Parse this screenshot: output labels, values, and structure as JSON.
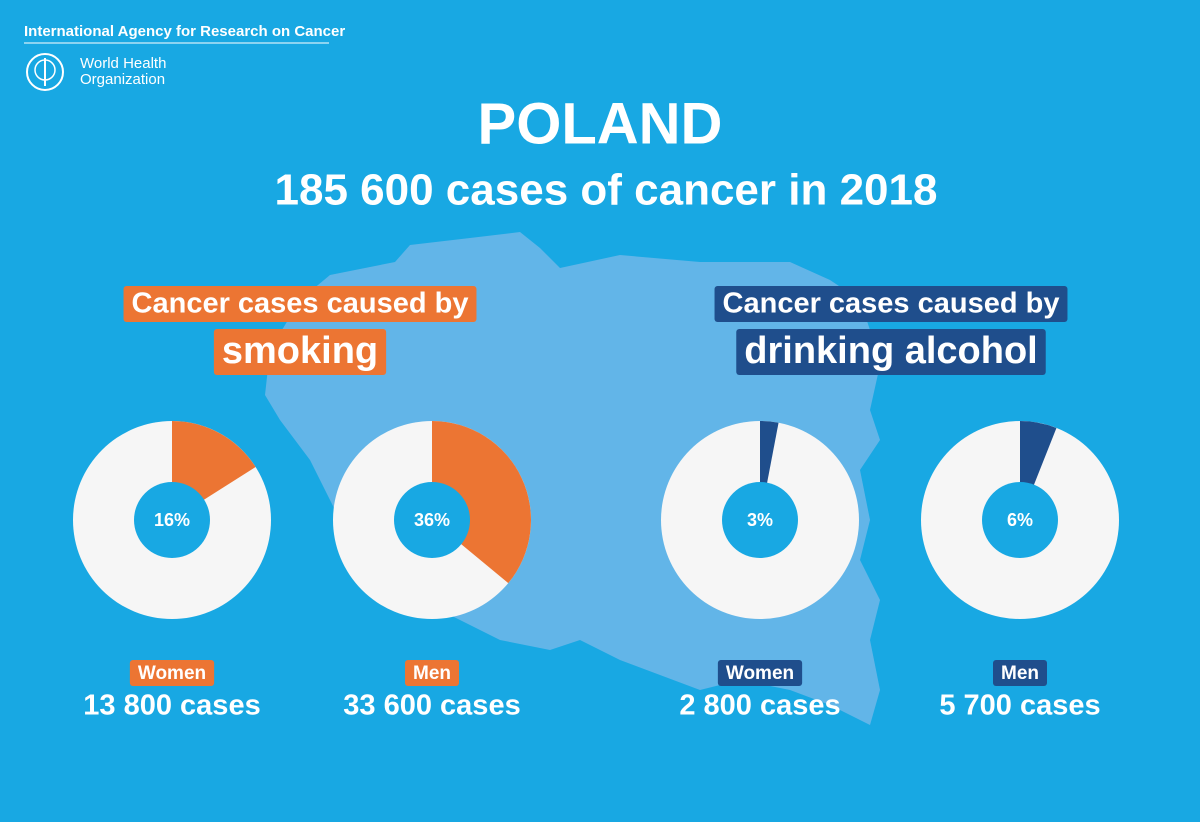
{
  "header": {
    "org": "International Agency for Research on Cancer",
    "who_line1": "World Health",
    "who_line2": "Organization"
  },
  "title": "POLAND",
  "subtitle": "185 600 cases of cancer in 2018",
  "groups": [
    {
      "label": "Cancer cases caused by",
      "highlight": "smoking",
      "color": "#ec7533"
    },
    {
      "label": "Cancer cases caused by",
      "highlight": "drinking alcohol",
      "color": "#1f4e8c"
    }
  ],
  "chart_data": [
    {
      "type": "pie",
      "title": "Women",
      "subtitle": "13 800 cases",
      "values": [
        16
      ],
      "value_labels": [
        "16%"
      ],
      "color": "#ec7533"
    },
    {
      "type": "pie",
      "title": "Men",
      "subtitle": "33 600 cases",
      "values": [
        36
      ],
      "value_labels": [
        "36%"
      ],
      "color": "#ec7533"
    },
    {
      "type": "pie",
      "title": "Women",
      "subtitle": "2 800 cases",
      "values": [
        3
      ],
      "value_labels": [
        "3%"
      ],
      "color": "#1f4e8c"
    },
    {
      "type": "pie",
      "title": "Men",
      "subtitle": "5 700 cases",
      "values": [
        6
      ],
      "value_labels": [
        "6%"
      ],
      "color": "#1f4e8c"
    }
  ]
}
